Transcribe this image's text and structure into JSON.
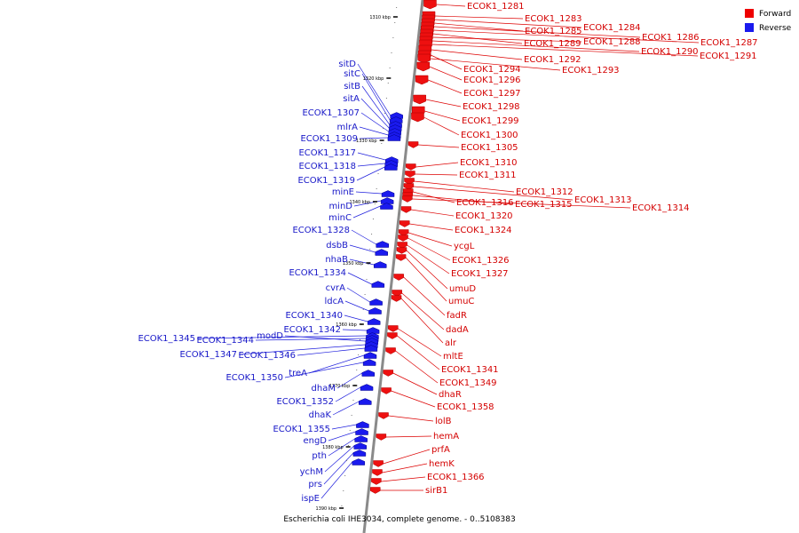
{
  "caption": "Escherichia coli IHE3034, complete genome. - 0..5108383",
  "legend": [
    {
      "label": "Forward",
      "color": "#ee0000"
    },
    {
      "label": "Reverse",
      "color": "#1a1aee"
    }
  ],
  "ticks": [
    "1310 kbp",
    "1320 kbp",
    "1330 kbp",
    "1340 kbp",
    "1350 kbp",
    "1360 kbp",
    "1370 kbp",
    "1380 kbp",
    "1390 kbp"
  ],
  "forward_genes": [
    "ECOK1_1281",
    "ECOK1_1283",
    "ECOK1_1284",
    "ECOK1_1285",
    "ECOK1_1286",
    "ECOK1_1287",
    "ECOK1_1289",
    "ECOK1_1288",
    "ECOK1_1290",
    "ECOK1_1291",
    "ECOK1_1292",
    "ECOK1_1294",
    "ECOK1_1293",
    "ECOK1_1296",
    "ECOK1_1297",
    "ECOK1_1298",
    "ECOK1_1299",
    "ECOK1_1300",
    "ECOK1_1305",
    "ECOK1_1310",
    "ECOK1_1311",
    "ECOK1_1312",
    "ECOK1_1313",
    "ECOK1_1316",
    "ECOK1_1315",
    "ECOK1_1314",
    "ECOK1_1320",
    "ECOK1_1324",
    "ycgL",
    "ECOK1_1326",
    "ECOK1_1327",
    "umuD",
    "umuC",
    "fadR",
    "dadA",
    "alr",
    "mltE",
    "ECOK1_1341",
    "ECOK1_1349",
    "dhaR",
    "ECOK1_1358",
    "lolB",
    "hemA",
    "prfA",
    "hemK",
    "ECOK1_1366",
    "sirB1"
  ],
  "reverse_genes": [
    "sitD",
    "sitC",
    "sitB",
    "sitA",
    "ECOK1_1307",
    "mlrA",
    "ECOK1_1309",
    "ECOK1_1317",
    "ECOK1_1318",
    "ECOK1_1319",
    "minE",
    "minD",
    "minC",
    "ECOK1_1328",
    "dsbB",
    "nhaB",
    "ECOK1_1334",
    "cvrA",
    "ldcA",
    "ECOK1_1340",
    "ECOK1_1342",
    "ECOK1_1345",
    "ECOK1_1344",
    "modD",
    "ECOK1_1347",
    "ECOK1_1346",
    "treA",
    "ECOK1_1350",
    "dhaM",
    "ECOK1_1352",
    "dhaK",
    "ECOK1_1355",
    "engD",
    "pth",
    "ychM",
    "prs",
    "ispE"
  ]
}
